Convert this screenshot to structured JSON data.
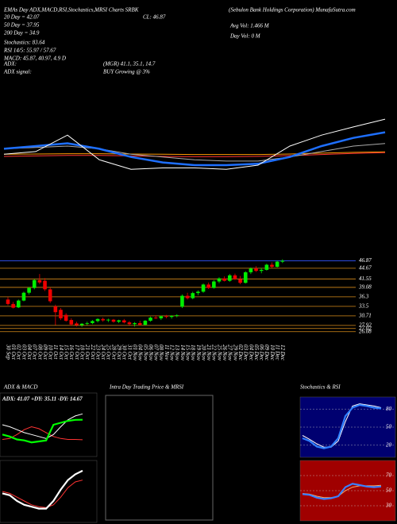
{
  "header": {
    "title": "EMAs Day ADX,MACD,RSI,Stochastics,MRSI Charts SRBK",
    "company": "(Sebulon Bank Holdings Corporation) MunafaSutra.com",
    "close": "CL: 46.87",
    "avg_vol": "Avg Vol: 1.466  M",
    "day_vol": "Day Vol: 0  M",
    "stats": [
      "20 Day = 42.07",
      "50 Day = 37.95",
      "200 Day = 34.9",
      "Stochastics: 83.64",
      "RSI 14/5: 55.97 / 57.67",
      "MACD: 45.87, 40.97, 4.9 D"
    ],
    "adx_label": "ADX:",
    "adx_values": "(MGR) 41.1, 35.1, 14.7",
    "adx_signal_label": "ADX  signal:",
    "adx_signal": "BUY Growing @ 3%"
  },
  "ema_panel": {
    "ylim": [
      20.7,
      49.8
    ],
    "series": [
      {
        "color": "#ff9900",
        "values": [
          34,
          34.1,
          34.2,
          34.2,
          34.1,
          34,
          33.9,
          33.9,
          33.9,
          34.1,
          34.4,
          34.7,
          34.9
        ]
      },
      {
        "color": "#ff3333",
        "values": [
          33.2,
          33.4,
          33.6,
          33.6,
          33.4,
          33.2,
          33.1,
          33.1,
          33.2,
          33.5,
          33.9,
          34.3,
          34.6
        ]
      },
      {
        "color": "#aaaaaa",
        "values": [
          36,
          36.5,
          37,
          36,
          34,
          33,
          32,
          31.5,
          31.5,
          33,
          35,
          37,
          37.95
        ]
      },
      {
        "color": "#1e6fff",
        "values": [
          36,
          37,
          38,
          36,
          33,
          31,
          30,
          30,
          30.5,
          33,
          37,
          40,
          42.07
        ]
      },
      {
        "color": "#ffffff",
        "values": [
          34,
          35,
          41,
          32,
          28.5,
          29,
          29,
          28.5,
          30,
          37,
          41,
          44,
          46.87
        ]
      }
    ]
  },
  "price_panel": {
    "ylim": [
      23.7,
      49.3
    ],
    "yticks": [
      46.87,
      44.67,
      41.55,
      39.08,
      36.3,
      33.5,
      30.71,
      27.92,
      27.02,
      26.08
    ],
    "up_color": "#00ee00",
    "down_color": "#ee0000",
    "candles": [
      [
        35.5,
        36.2,
        33.8,
        34.2
      ],
      [
        34.2,
        34.8,
        32.9,
        33.1
      ],
      [
        33.2,
        35.5,
        33.0,
        35.2
      ],
      [
        35.2,
        37.8,
        35.0,
        37.5
      ],
      [
        37.5,
        39.2,
        37.0,
        38.9
      ],
      [
        38.9,
        41.5,
        38.5,
        41.2
      ],
      [
        41.2,
        43.0,
        40.0,
        40.5
      ],
      [
        41.0,
        41.8,
        38.0,
        38.5
      ],
      [
        38.5,
        39.0,
        34.5,
        35.0
      ],
      [
        33.5,
        34.0,
        28.0,
        31.8
      ],
      [
        32.5,
        33.0,
        29.5,
        30.0
      ],
      [
        31.0,
        31.5,
        29.0,
        29.3
      ],
      [
        29.5,
        30.0,
        27.8,
        28.2
      ],
      [
        28.5,
        29.0,
        27.6,
        28.0
      ],
      [
        28.0,
        28.6,
        27.5,
        28.4
      ],
      [
        28.4,
        29.0,
        28.0,
        28.6
      ],
      [
        28.6,
        29.5,
        28.3,
        29.2
      ],
      [
        29.2,
        30.0,
        28.8,
        29.8
      ],
      [
        29.8,
        30.2,
        29.0,
        29.4
      ],
      [
        29.4,
        29.9,
        28.9,
        29.6
      ],
      [
        29.6,
        29.8,
        28.7,
        29.0
      ],
      [
        29.0,
        29.6,
        28.6,
        29.4
      ],
      [
        29.4,
        29.8,
        28.5,
        28.8
      ],
      [
        28.8,
        29.2,
        28.0,
        28.3
      ],
      [
        28.3,
        28.9,
        27.6,
        28.6
      ],
      [
        28.6,
        29.3,
        27.8,
        28.1
      ],
      [
        28.1,
        29.5,
        27.9,
        29.3
      ],
      [
        29.3,
        30.5,
        29.0,
        30.2
      ],
      [
        30.2,
        30.9,
        29.8,
        30.0
      ],
      [
        30.0,
        30.8,
        29.5,
        30.6
      ],
      [
        30.6,
        31.0,
        30.0,
        30.4
      ],
      [
        30.4,
        30.9,
        29.9,
        30.7
      ],
      [
        30.7,
        31.2,
        30.3,
        30.9
      ],
      [
        33.4,
        37.0,
        33.0,
        36.6
      ],
      [
        36.6,
        37.5,
        35.5,
        35.9
      ],
      [
        35.9,
        37.8,
        35.6,
        37.4
      ],
      [
        37.4,
        38.2,
        36.8,
        37.8
      ],
      [
        37.8,
        40.2,
        37.5,
        39.9
      ],
      [
        39.9,
        40.5,
        38.6,
        38.9
      ],
      [
        38.9,
        41.2,
        38.7,
        40.8
      ],
      [
        40.8,
        42.0,
        40.3,
        41.7
      ],
      [
        41.7,
        42.3,
        40.8,
        41.0
      ],
      [
        41.0,
        43.0,
        40.7,
        42.6
      ],
      [
        42.6,
        43.1,
        41.2,
        41.5
      ],
      [
        41.5,
        42.4,
        40.0,
        40.4
      ],
      [
        40.4,
        43.8,
        40.2,
        43.5
      ],
      [
        43.5,
        44.9,
        43.0,
        44.6
      ],
      [
        44.6,
        45.3,
        43.6,
        43.9
      ],
      [
        43.9,
        44.8,
        43.2,
        44.2
      ],
      [
        44.2,
        46.0,
        44.0,
        45.7
      ],
      [
        45.7,
        46.4,
        44.8,
        45.1
      ],
      [
        45.1,
        46.9,
        44.9,
        46.6
      ],
      [
        46.6,
        47.3,
        46.2,
        46.87
      ]
    ],
    "dates": [
      "30 Sep",
      "01 Oct",
      "02 Oct",
      "03 Oct",
      "04 Oct",
      "07 Oct",
      "08 Oct",
      "09 Oct",
      "10 Oct",
      "11 Oct",
      "14 Oct",
      "15 Oct",
      "16 Oct",
      "17 Oct",
      "18 Oct",
      "21 Oct",
      "22 Oct",
      "23 Oct",
      "24 Oct",
      "25 Oct",
      "28 Oct",
      "29 Oct",
      "30 Oct",
      "31 Oct",
      "01 Nov",
      "04 Nov",
      "05 Nov",
      "06 Nov",
      "07 Nov",
      "08 Nov",
      "11 Nov",
      "12 Nov",
      "13 Nov",
      "14 Nov",
      "15 Nov",
      "18 Nov",
      "19 Nov",
      "20 Nov",
      "21 Nov",
      "22 Nov",
      "25 Nov",
      "26 Nov",
      "27 Nov",
      "29 Nov",
      "02 Dec",
      "03 Dec",
      "04 Dec",
      "05 Dec",
      "06 Dec",
      "09 Dec",
      "10 Dec",
      "11 Dec",
      "12 Dec"
    ]
  },
  "panels": [
    {
      "title": "ADX  & MACD",
      "label": "ADX: 41.07 +DY: 35.11 -DY: 14.67",
      "ylim": [
        0,
        60
      ],
      "series": [
        {
          "color": "#ff3333",
          "values": [
            15,
            16,
            20,
            25,
            28,
            26,
            22,
            18,
            16,
            15,
            15,
            14.67
          ]
        },
        {
          "color": "#ffffff",
          "values": [
            30,
            28,
            25,
            22,
            20,
            18,
            16,
            20,
            28,
            35,
            39,
            41.07
          ]
        },
        {
          "color": "#00ff00",
          "values": [
            20,
            18,
            15,
            14,
            12,
            13,
            14,
            30,
            32,
            34,
            35,
            35.11
          ]
        }
      ]
    },
    {
      "ylim": [
        20,
        50
      ],
      "series": [
        {
          "color": "#ff3333",
          "values": [
            35,
            34,
            32,
            30,
            28,
            27,
            26.5,
            28,
            32,
            37,
            40,
            40.97
          ]
        },
        {
          "color": "#ffffff",
          "values": [
            34,
            33,
            30,
            28,
            27,
            26,
            26,
            30,
            36,
            41,
            44,
            45.87
          ]
        }
      ]
    },
    {
      "title": "Intra Day Trading Price  & MRSI"
    },
    {
      "title": "Stochastics & RSI",
      "ylim": [
        0,
        100
      ],
      "yticks": [
        20,
        50,
        80
      ],
      "series": [
        {
          "color": "#ffffff",
          "values": [
            35,
            28,
            20,
            14,
            14,
            25,
            60,
            88,
            92,
            90,
            88,
            85
          ]
        },
        {
          "color": "#2f7fff",
          "values": [
            30,
            25,
            15,
            12,
            15,
            30,
            70,
            85,
            90,
            88,
            85,
            83.64
          ]
        }
      ]
    },
    {
      "ylim": [
        10,
        90
      ],
      "yticks": [
        30,
        50,
        70
      ],
      "series": [
        {
          "color": "#ffaa66",
          "values": [
            46,
            45,
            42,
            40,
            40,
            42,
            50,
            55,
            57,
            57,
            57,
            57.67
          ]
        },
        {
          "color": "#3a7fff",
          "values": [
            45,
            44,
            40,
            38,
            39,
            42,
            55,
            60,
            58,
            56,
            55,
            55.97
          ]
        }
      ]
    }
  ]
}
